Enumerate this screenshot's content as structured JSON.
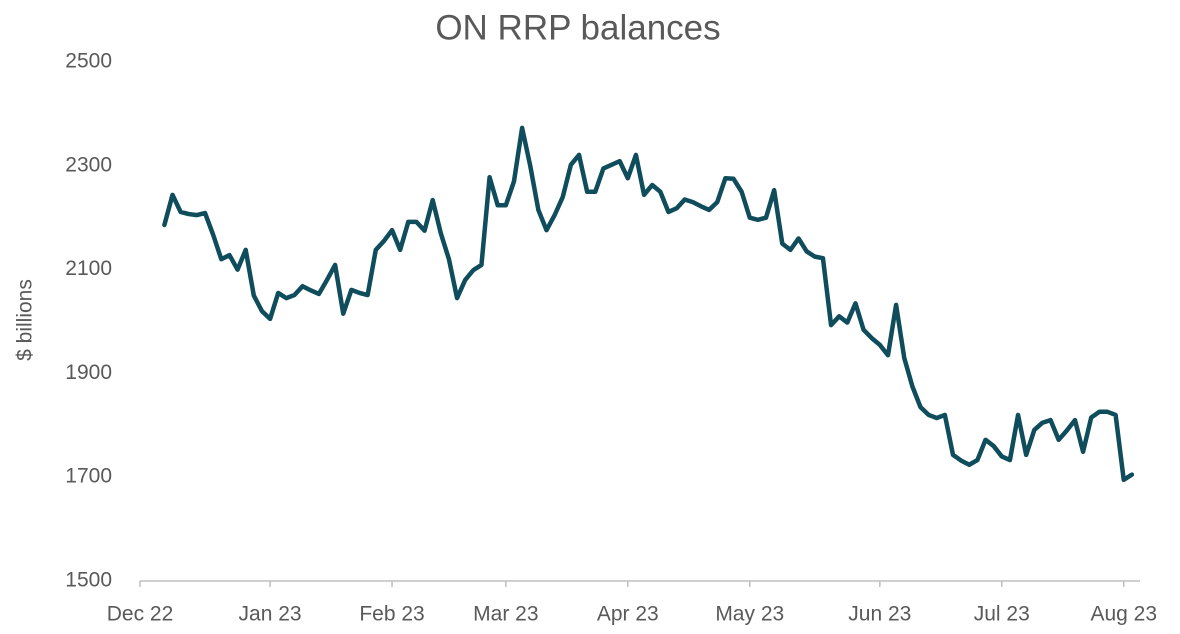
{
  "chart_data": {
    "type": "line",
    "title": "ON RRP balances",
    "y_label": "$ billions",
    "categories": [
      "Dec 22",
      null,
      null,
      null,
      null,
      null,
      null,
      null,
      null,
      null,
      null,
      null,
      null,
      null,
      null,
      null,
      "Jan 23",
      null,
      null,
      null,
      null,
      null,
      null,
      null,
      null,
      null,
      null,
      null,
      null,
      null,
      null,
      "Feb 23",
      null,
      null,
      null,
      null,
      null,
      null,
      null,
      null,
      null,
      null,
      null,
      null,
      null,
      "Mar 23",
      null,
      null,
      null,
      null,
      null,
      null,
      null,
      null,
      null,
      null,
      null,
      null,
      null,
      null,
      "Apr 23",
      null,
      null,
      null,
      null,
      null,
      null,
      null,
      null,
      null,
      null,
      null,
      null,
      null,
      null,
      "May 23",
      null,
      null,
      null,
      null,
      null,
      null,
      null,
      null,
      null,
      null,
      null,
      null,
      null,
      null,
      null,
      "Jun 23",
      null,
      null,
      null,
      null,
      null,
      null,
      null,
      null,
      null,
      null,
      null,
      null,
      null,
      null,
      "Jul 23",
      null,
      null,
      null,
      null,
      null,
      null,
      null,
      null,
      null,
      null,
      null,
      null,
      null,
      null,
      "Aug 23",
      null,
      null
    ],
    "series": [
      {
        "name": "ON RRP",
        "color": "#0f4c5c",
        "values": [
          null,
          null,
          null,
          2186,
          2244,
          2211,
          2207,
          2205,
          2209,
          2167,
          2120,
          2128,
          2100,
          2138,
          2050,
          2020,
          2005,
          2055,
          2045,
          2051,
          2068,
          2060,
          2053,
          2080,
          2109,
          2015,
          2061,
          2055,
          2051,
          2138,
          2155,
          2176,
          2138,
          2192,
          2192,
          2175,
          2234,
          2170,
          2120,
          2045,
          2080,
          2099,
          2109,
          2278,
          2224,
          2224,
          2270,
          2373,
          2300,
          2215,
          2176,
          2205,
          2240,
          2302,
          2321,
          2250,
          2250,
          2295,
          2302,
          2309,
          2276,
          2321,
          2244,
          2263,
          2250,
          2211,
          2218,
          2235,
          2230,
          2222,
          2215,
          2230,
          2276,
          2275,
          2250,
          2200,
          2196,
          2200,
          2253,
          2150,
          2138,
          2160,
          2135,
          2125,
          2122,
          1993,
          2010,
          1998,
          2035,
          1984,
          1968,
          1955,
          1935,
          2032,
          1930,
          1875,
          1835,
          1820,
          1814,
          1820,
          1743,
          1732,
          1724,
          1733,
          1772,
          1760,
          1740,
          1733,
          1820,
          1743,
          1791,
          1805,
          1810,
          1772,
          1790,
          1810,
          1749,
          1815,
          1826,
          1826,
          1820,
          1695,
          1705,
          null
        ]
      }
    ],
    "ylim": [
      1500,
      2500
    ],
    "yticks": [
      1500,
      1700,
      1900,
      2100,
      2300,
      2500
    ],
    "grid": false
  }
}
